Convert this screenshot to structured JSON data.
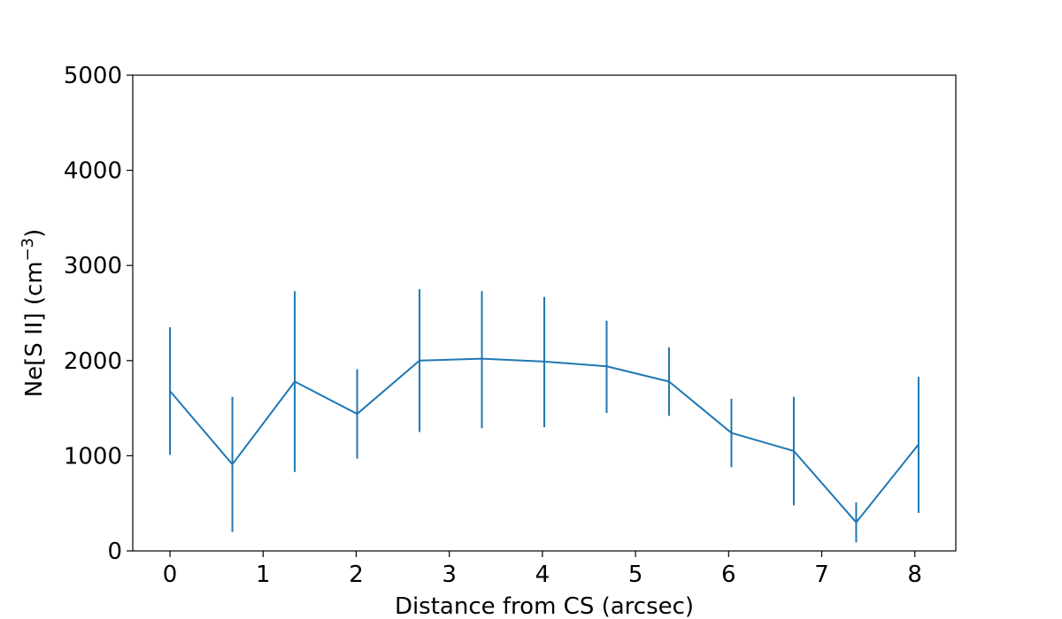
{
  "chart_data": {
    "type": "line",
    "title": "",
    "xlabel": "Distance from CS (arcsec)",
    "ylabel_main": "Ne[S II] (cm",
    "ylabel_exponent": "−3",
    "ylabel_close": ")",
    "xlim": [
      -0.4,
      8.44
    ],
    "ylim": [
      0,
      5000
    ],
    "grid": false,
    "legend": "none",
    "color": "#1f77b4",
    "xticks": [
      0,
      1,
      2,
      3,
      4,
      5,
      6,
      7,
      8
    ],
    "xtick_labels": [
      "0",
      "1",
      "2",
      "3",
      "4",
      "5",
      "6",
      "7",
      "8"
    ],
    "yticks": [
      0,
      1000,
      2000,
      3000,
      4000,
      5000
    ],
    "ytick_labels": [
      "0",
      "1000",
      "2000",
      "3000",
      "4000",
      "5000"
    ],
    "series": [
      {
        "x": [
          0,
          0.67,
          1.34,
          2.01,
          2.68,
          3.35,
          4.02,
          4.69,
          5.36,
          6.03,
          6.7,
          7.37,
          8.04
        ],
        "y": [
          1680,
          910,
          1780,
          1440,
          2000,
          2020,
          1990,
          1940,
          1780,
          1240,
          1050,
          300,
          1120
        ],
        "yerr_low": [
          1010,
          200,
          830,
          970,
          1250,
          1290,
          1300,
          1450,
          1420,
          880,
          480,
          90,
          400
        ],
        "yerr_high": [
          2350,
          1620,
          2730,
          1910,
          2750,
          2730,
          2670,
          2420,
          2140,
          1600,
          1620,
          510,
          1830
        ]
      }
    ]
  }
}
